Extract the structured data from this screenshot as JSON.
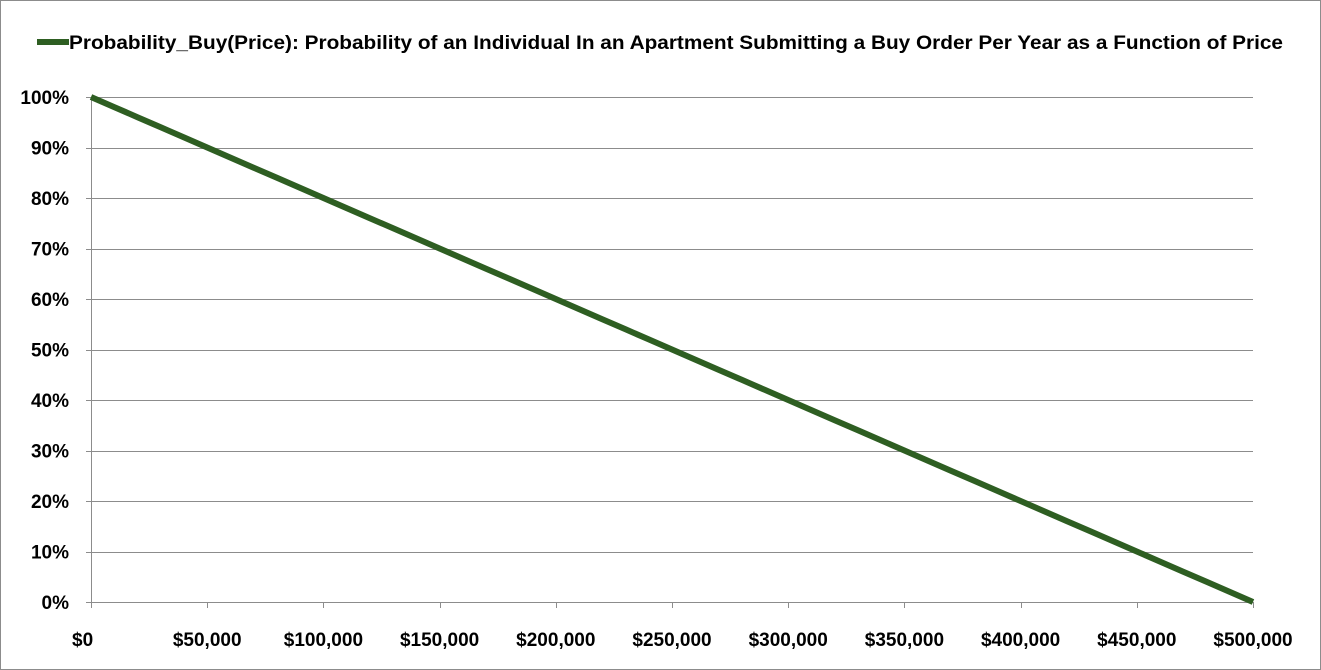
{
  "chart_data": {
    "type": "line",
    "title": "",
    "xlabel": "",
    "ylabel": "",
    "x_tick_labels": [
      "$0",
      "$50,000",
      "$100,000",
      "$150,000",
      "$200,000",
      "$250,000",
      "$300,000",
      "$350,000",
      "$400,000",
      "$450,000",
      "$500,000"
    ],
    "x_ticks": [
      0,
      50000,
      100000,
      150000,
      200000,
      250000,
      300000,
      350000,
      400000,
      450000,
      500000
    ],
    "y_tick_labels": [
      "0%",
      "10%",
      "20%",
      "30%",
      "40%",
      "50%",
      "60%",
      "70%",
      "80%",
      "90%",
      "100%"
    ],
    "y_ticks": [
      0,
      0.1,
      0.2,
      0.3,
      0.4,
      0.5,
      0.6,
      0.7,
      0.8,
      0.9,
      1.0
    ],
    "xlim": [
      0,
      500000
    ],
    "ylim": [
      0,
      1
    ],
    "grid": true,
    "legend_position": "top",
    "series": [
      {
        "name": "Probability_Buy(Price): Probability of an Individual In an Apartment Submitting a Buy Order Per Year as a Function of Price",
        "color": "#2e5e22",
        "x": [
          0,
          10000,
          20000,
          30000,
          40000,
          50000,
          60000,
          70000,
          80000,
          90000,
          100000,
          110000,
          120000,
          130000,
          140000,
          150000,
          160000,
          170000,
          180000,
          190000,
          200000,
          210000,
          220000,
          230000,
          240000,
          250000,
          260000,
          270000,
          280000,
          290000,
          300000,
          310000,
          320000,
          330000,
          340000,
          350000,
          360000,
          370000,
          380000,
          390000,
          400000,
          410000,
          420000,
          430000,
          440000,
          450000,
          460000,
          470000,
          480000,
          490000,
          500000
        ],
        "y": [
          1.0,
          0.98,
          0.96,
          0.94,
          0.92,
          0.9,
          0.88,
          0.86,
          0.84,
          0.82,
          0.8,
          0.78,
          0.76,
          0.74,
          0.72,
          0.7,
          0.68,
          0.66,
          0.64,
          0.62,
          0.6,
          0.58,
          0.56,
          0.54,
          0.52,
          0.5,
          0.48,
          0.46,
          0.44,
          0.42,
          0.4,
          0.38,
          0.36,
          0.34,
          0.32,
          0.3,
          0.28,
          0.26,
          0.24,
          0.22,
          0.2,
          0.18,
          0.16,
          0.14,
          0.12,
          0.1,
          0.08,
          0.06,
          0.04,
          0.02,
          0.0
        ]
      }
    ]
  }
}
